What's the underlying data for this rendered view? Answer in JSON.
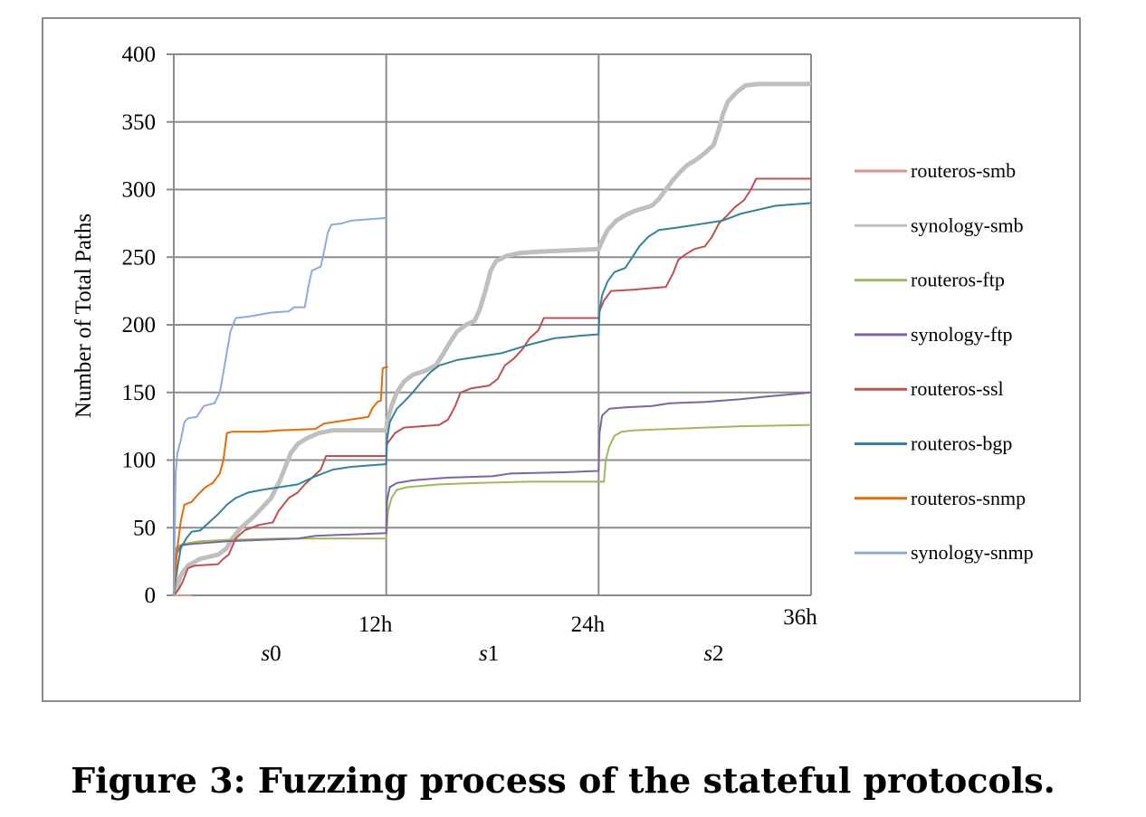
{
  "caption": "Figure 3: Fuzzing process of the stateful protocols.",
  "chart_data": {
    "type": "line",
    "title": "",
    "xlabel": "",
    "ylabel": "Number of Total Paths",
    "xlim": [
      0,
      36
    ],
    "ylim": [
      0,
      400
    ],
    "y_ticks": [
      0,
      50,
      100,
      150,
      200,
      250,
      300,
      350,
      400
    ],
    "x_ticks": [
      {
        "value": 12,
        "label": "12h"
      },
      {
        "value": 24,
        "label": "24h"
      },
      {
        "value": 36,
        "label": "36h"
      }
    ],
    "x_segments": [
      {
        "x": 5.5,
        "prefix": "s",
        "index": "0"
      },
      {
        "x": 17.8,
        "prefix": "s",
        "index": "1"
      },
      {
        "x": 30.5,
        "prefix": "s",
        "index": "2"
      }
    ],
    "grid": true,
    "legend_position": "right",
    "series": [
      {
        "name": "routeros-smb",
        "color": "#d99694",
        "width": 2,
        "points": [
          [
            0,
            0
          ],
          [
            0.3,
            0
          ],
          [
            1,
            0
          ]
        ]
      },
      {
        "name": "synology-smb",
        "color": "#bfbfbf",
        "width": 5,
        "points": [
          [
            0,
            0
          ],
          [
            0.4,
            15
          ],
          [
            0.8,
            22
          ],
          [
            1.5,
            27
          ],
          [
            2.5,
            30
          ],
          [
            3,
            35
          ],
          [
            3.3,
            42
          ],
          [
            3.8,
            50
          ],
          [
            4.5,
            58
          ],
          [
            5,
            65
          ],
          [
            5.5,
            72
          ],
          [
            6,
            85
          ],
          [
            6.3,
            95
          ],
          [
            6.6,
            105
          ],
          [
            7,
            112
          ],
          [
            7.5,
            116
          ],
          [
            8.2,
            120
          ],
          [
            9,
            122
          ],
          [
            12,
            122
          ],
          [
            12.05,
            128
          ],
          [
            12.3,
            140
          ],
          [
            12.6,
            150
          ],
          [
            13,
            158
          ],
          [
            13.5,
            163
          ],
          [
            14.2,
            166
          ],
          [
            14.8,
            170
          ],
          [
            15.2,
            178
          ],
          [
            15.6,
            187
          ],
          [
            16,
            195
          ],
          [
            16.5,
            200
          ],
          [
            17,
            203
          ],
          [
            17.3,
            212
          ],
          [
            17.6,
            225
          ],
          [
            17.9,
            240
          ],
          [
            18.2,
            247
          ],
          [
            18.8,
            251
          ],
          [
            19.5,
            253
          ],
          [
            20.5,
            254
          ],
          [
            24,
            256
          ],
          [
            24.2,
            262
          ],
          [
            24.5,
            270
          ],
          [
            25,
            277
          ],
          [
            25.5,
            281
          ],
          [
            26,
            284
          ],
          [
            27,
            288
          ],
          [
            27.4,
            293
          ],
          [
            27.8,
            300
          ],
          [
            28.2,
            307
          ],
          [
            28.6,
            313
          ],
          [
            29,
            318
          ],
          [
            29.5,
            322
          ],
          [
            30,
            327
          ],
          [
            30.5,
            333
          ],
          [
            30.8,
            345
          ],
          [
            31,
            355
          ],
          [
            31.3,
            365
          ],
          [
            31.8,
            372
          ],
          [
            32.3,
            377
          ],
          [
            33,
            378
          ],
          [
            36,
            378
          ]
        ]
      },
      {
        "name": "routeros-ftp",
        "color": "#9bbb59",
        "width": 2,
        "points": [
          [
            0,
            0
          ],
          [
            0.1,
            35
          ],
          [
            0.5,
            38
          ],
          [
            1.5,
            40
          ],
          [
            3,
            41
          ],
          [
            6,
            42
          ],
          [
            12,
            42
          ],
          [
            12.1,
            62
          ],
          [
            12.3,
            72
          ],
          [
            12.6,
            78
          ],
          [
            13.2,
            80
          ],
          [
            15,
            82
          ],
          [
            17,
            83
          ],
          [
            20,
            84
          ],
          [
            24.3,
            84
          ],
          [
            24.4,
            100
          ],
          [
            24.6,
            110
          ],
          [
            24.9,
            118
          ],
          [
            25.3,
            121
          ],
          [
            26,
            122
          ],
          [
            28,
            123
          ],
          [
            30,
            124
          ],
          [
            32,
            125
          ],
          [
            36,
            126
          ]
        ]
      },
      {
        "name": "synology-ftp",
        "color": "#8064a2",
        "width": 2,
        "points": [
          [
            0,
            0
          ],
          [
            0.15,
            30
          ],
          [
            0.4,
            37
          ],
          [
            1,
            38
          ],
          [
            3,
            40
          ],
          [
            5,
            41
          ],
          [
            7,
            42
          ],
          [
            8,
            44
          ],
          [
            10,
            45
          ],
          [
            12,
            46
          ],
          [
            12.05,
            70
          ],
          [
            12.2,
            80
          ],
          [
            12.6,
            83
          ],
          [
            13.5,
            85
          ],
          [
            15.5,
            87
          ],
          [
            18,
            88
          ],
          [
            19,
            90
          ],
          [
            22,
            91
          ],
          [
            24,
            92
          ],
          [
            24.05,
            120
          ],
          [
            24.2,
            133
          ],
          [
            24.6,
            138
          ],
          [
            25.5,
            139
          ],
          [
            27,
            140
          ],
          [
            28,
            142
          ],
          [
            30,
            143
          ],
          [
            32,
            145
          ],
          [
            33.5,
            147
          ],
          [
            36,
            150
          ]
        ]
      },
      {
        "name": "routeros-ssl",
        "color": "#c0504d",
        "width": 2,
        "points": [
          [
            0,
            0
          ],
          [
            0.3,
            5
          ],
          [
            0.5,
            10
          ],
          [
            0.8,
            20
          ],
          [
            1.2,
            22
          ],
          [
            2.5,
            23
          ],
          [
            2.8,
            27
          ],
          [
            3.1,
            30
          ],
          [
            3.5,
            42
          ],
          [
            4,
            48
          ],
          [
            4.8,
            52
          ],
          [
            5.6,
            54
          ],
          [
            5.9,
            62
          ],
          [
            6.5,
            72
          ],
          [
            7,
            76
          ],
          [
            7.4,
            82
          ],
          [
            7.9,
            88
          ],
          [
            8.3,
            93
          ],
          [
            8.6,
            103
          ],
          [
            12,
            103
          ],
          [
            12.05,
            112
          ],
          [
            12.5,
            120
          ],
          [
            13,
            124
          ],
          [
            15,
            126
          ],
          [
            15.5,
            130
          ],
          [
            15.9,
            140
          ],
          [
            16.2,
            150
          ],
          [
            16.8,
            153
          ],
          [
            17.8,
            155
          ],
          [
            18.3,
            160
          ],
          [
            18.7,
            170
          ],
          [
            19.2,
            175
          ],
          [
            19.7,
            182
          ],
          [
            20.1,
            190
          ],
          [
            20.6,
            196
          ],
          [
            20.9,
            205
          ],
          [
            24,
            205
          ],
          [
            24.05,
            210
          ],
          [
            24.3,
            218
          ],
          [
            24.7,
            225
          ],
          [
            26,
            226
          ],
          [
            27.8,
            228
          ],
          [
            28.2,
            238
          ],
          [
            28.5,
            248
          ],
          [
            28.9,
            252
          ],
          [
            29.4,
            256
          ],
          [
            30,
            258
          ],
          [
            30.4,
            265
          ],
          [
            30.8,
            275
          ],
          [
            31.2,
            280
          ],
          [
            31.7,
            287
          ],
          [
            32.2,
            292
          ],
          [
            32.6,
            300
          ],
          [
            32.9,
            308
          ],
          [
            36,
            308
          ]
        ]
      },
      {
        "name": "routeros-bgp",
        "color": "#31849b",
        "width": 2,
        "points": [
          [
            0,
            0
          ],
          [
            0.2,
            20
          ],
          [
            0.4,
            35
          ],
          [
            0.7,
            42
          ],
          [
            1,
            47
          ],
          [
            1.5,
            48
          ],
          [
            2,
            54
          ],
          [
            2.5,
            60
          ],
          [
            3,
            67
          ],
          [
            3.5,
            72
          ],
          [
            4.2,
            76
          ],
          [
            5,
            78
          ],
          [
            6,
            80
          ],
          [
            7,
            82
          ],
          [
            8,
            88
          ],
          [
            9,
            93
          ],
          [
            10,
            95
          ],
          [
            12,
            97
          ],
          [
            12.05,
            115
          ],
          [
            12.2,
            128
          ],
          [
            12.6,
            138
          ],
          [
            13,
            143
          ],
          [
            13.5,
            150
          ],
          [
            14,
            158
          ],
          [
            14.5,
            165
          ],
          [
            15,
            170
          ],
          [
            16,
            174
          ],
          [
            17,
            176
          ],
          [
            18.5,
            179
          ],
          [
            20,
            185
          ],
          [
            21.5,
            190
          ],
          [
            23,
            192
          ],
          [
            24,
            193
          ],
          [
            24.05,
            210
          ],
          [
            24.2,
            222
          ],
          [
            24.5,
            232
          ],
          [
            24.9,
            239
          ],
          [
            25.5,
            242
          ],
          [
            25.9,
            250
          ],
          [
            26.3,
            258
          ],
          [
            26.8,
            265
          ],
          [
            27.4,
            270
          ],
          [
            28.5,
            272
          ],
          [
            30,
            275
          ],
          [
            31,
            277
          ],
          [
            32,
            282
          ],
          [
            33,
            285
          ],
          [
            34,
            288
          ],
          [
            36,
            290
          ]
        ]
      },
      {
        "name": "routeros-snmp",
        "color": "#e36c09",
        "width": 2,
        "points": [
          [
            0,
            0
          ],
          [
            0.2,
            35
          ],
          [
            0.4,
            55
          ],
          [
            0.6,
            67
          ],
          [
            1,
            69
          ],
          [
            1.4,
            75
          ],
          [
            1.8,
            80
          ],
          [
            2.2,
            83
          ],
          [
            2.6,
            90
          ],
          [
            2.8,
            100
          ],
          [
            3,
            120
          ],
          [
            3.3,
            121
          ],
          [
            5,
            121
          ],
          [
            6,
            122
          ],
          [
            8,
            123
          ],
          [
            8.5,
            127
          ],
          [
            9.5,
            129
          ],
          [
            10.5,
            131
          ],
          [
            11,
            132
          ],
          [
            11.2,
            138
          ],
          [
            11.5,
            143
          ],
          [
            11.7,
            144
          ],
          [
            11.8,
            168
          ],
          [
            12.1,
            169
          ]
        ]
      },
      {
        "name": "synology-snmp",
        "color": "#8eaadb",
        "width": 2,
        "points": [
          [
            0,
            0
          ],
          [
            0.1,
            90
          ],
          [
            0.2,
            105
          ],
          [
            0.4,
            115
          ],
          [
            0.6,
            128
          ],
          [
            0.8,
            131
          ],
          [
            1.3,
            132
          ],
          [
            1.7,
            140
          ],
          [
            2.3,
            142
          ],
          [
            2.6,
            150
          ],
          [
            2.8,
            165
          ],
          [
            3,
            180
          ],
          [
            3.2,
            195
          ],
          [
            3.5,
            205
          ],
          [
            4.2,
            206
          ],
          [
            5.5,
            209
          ],
          [
            6.5,
            210
          ],
          [
            6.8,
            213
          ],
          [
            7.4,
            213
          ],
          [
            7.6,
            228
          ],
          [
            7.8,
            240
          ],
          [
            8.3,
            243
          ],
          [
            8.5,
            255
          ],
          [
            8.7,
            268
          ],
          [
            8.9,
            274
          ],
          [
            9.5,
            275
          ],
          [
            10,
            277
          ],
          [
            11,
            278
          ],
          [
            12,
            279
          ]
        ]
      }
    ]
  }
}
